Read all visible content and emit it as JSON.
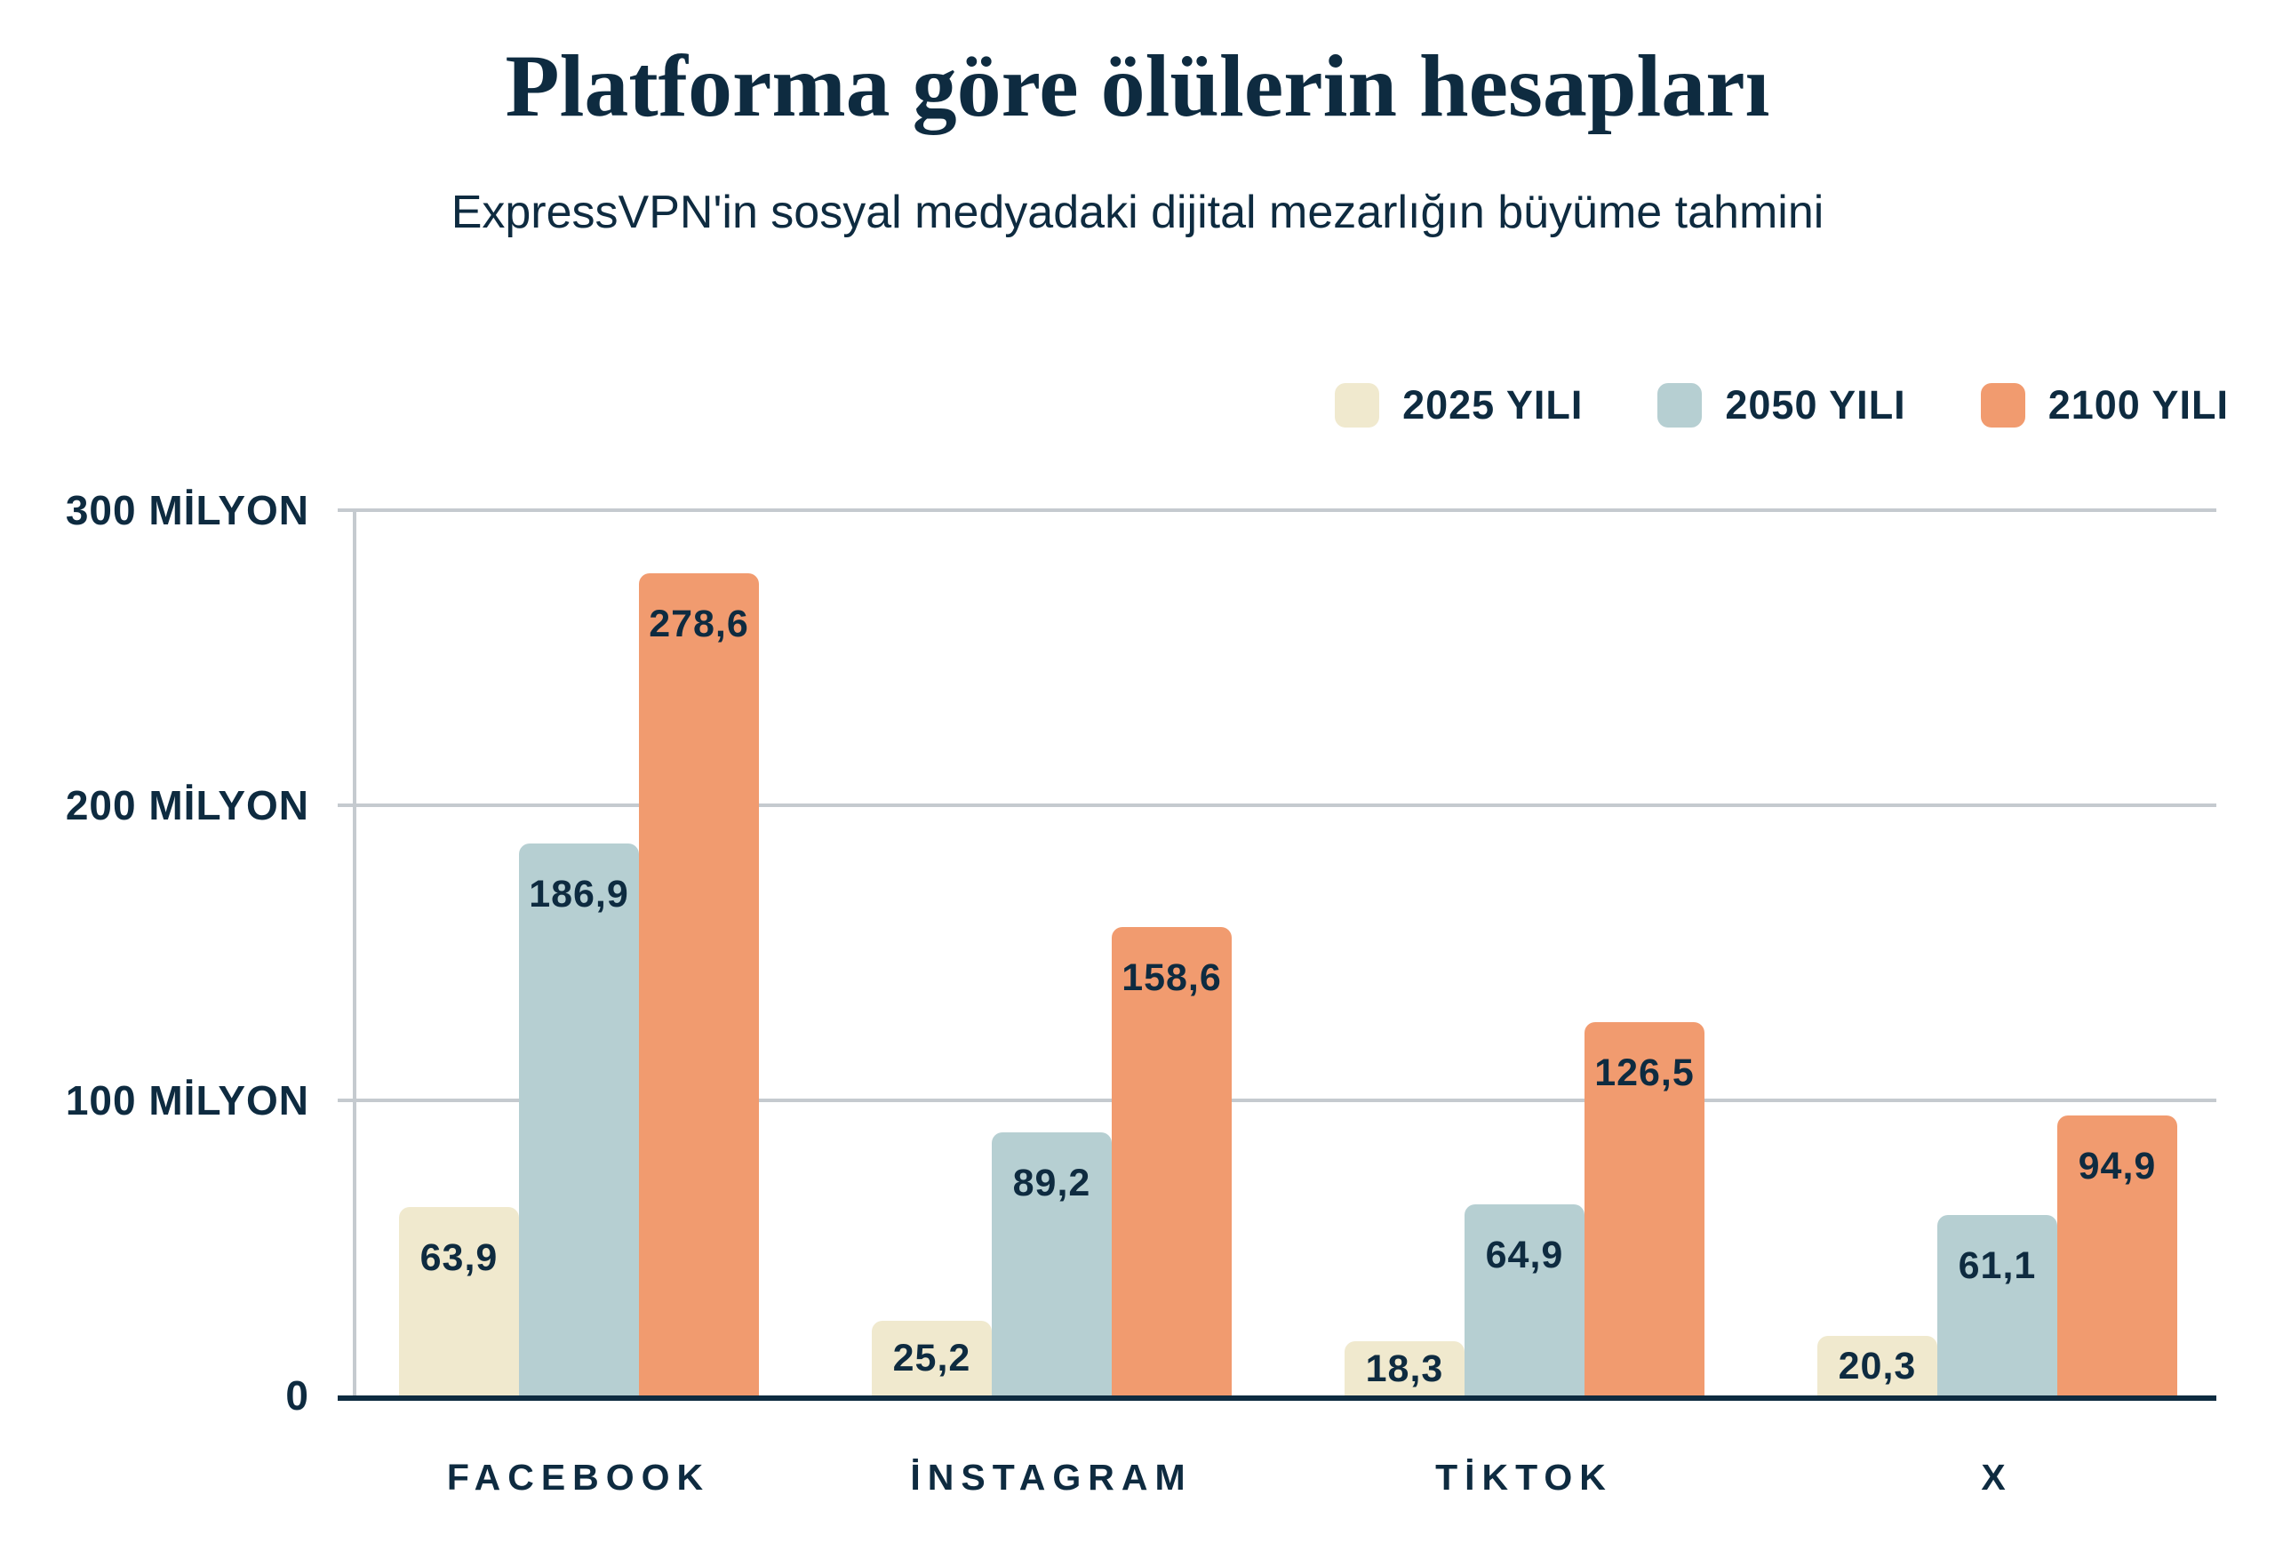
{
  "header": {
    "title": "Platforma göre ölülerin hesapları",
    "subtitle": "ExpressVPN'in sosyal medyadaki dijital mezarlığın büyüme tahmini"
  },
  "colors": {
    "navy_text": "#0E2B40",
    "grid_gray": "#C5CACF",
    "background": "#FFFFFF",
    "series_2025": "#F0E9CE",
    "series_2050": "#B6CFD2",
    "series_2100": "#F19B6F"
  },
  "chart_data": {
    "type": "bar",
    "title": "Platforma göre ölülerin hesapları",
    "subtitle": "ExpressVPN'in sosyal medyadaki dijital mezarlığın büyüme tahmini",
    "categories": [
      "FACEBOOK",
      "İNSTAGRAM",
      "TİKTOK",
      "X"
    ],
    "series": [
      {
        "name": "2025 YILI",
        "color": "#F0E9CE",
        "values": [
          63.9,
          25.2,
          18.3,
          20.3
        ]
      },
      {
        "name": "2050 YILI",
        "color": "#B6CFD2",
        "values": [
          186.9,
          89.2,
          64.9,
          61.1
        ]
      },
      {
        "name": "2100 YILI",
        "color": "#F19B6F",
        "values": [
          278.6,
          158.6,
          126.5,
          94.9
        ]
      }
    ],
    "value_label_decimal_separator": ",",
    "xlabel": "",
    "ylabel": "",
    "ylim": [
      0,
      300
    ],
    "y_ticks": [
      {
        "value": 0,
        "label": "0"
      },
      {
        "value": 100,
        "label": "100 MİLYON"
      },
      {
        "value": 200,
        "label": "200 MİLYON"
      },
      {
        "value": 300,
        "label": "300 MİLYON"
      }
    ],
    "grid": true,
    "legend_position": "top-right"
  }
}
